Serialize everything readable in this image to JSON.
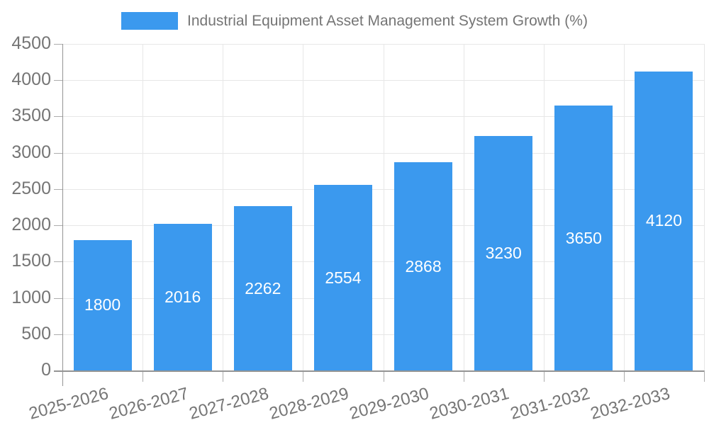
{
  "legend": {
    "label": "Industrial Equipment Asset Management System Growth (%)"
  },
  "chart_data": {
    "type": "bar",
    "title": "Industrial Equipment Asset Management System Growth (%)",
    "categories": [
      "2025-2026",
      "2026-2027",
      "2027-2028",
      "2028-2029",
      "2029-2030",
      "2030-2031",
      "2031-2032",
      "2032-2033"
    ],
    "values": [
      1800,
      2016,
      2262,
      2554,
      2868,
      3230,
      3650,
      4120
    ],
    "xlabel": "",
    "ylabel": "",
    "ylim": [
      0,
      4500
    ],
    "ytick_step": 500,
    "yticks": [
      0,
      500,
      1000,
      1500,
      2000,
      2500,
      3000,
      3500,
      4000,
      4500
    ],
    "grid": true,
    "legend_position": "top-center",
    "x_label_rotation_deg": 15,
    "colors": {
      "bar": "#3B99EE",
      "bar_label": "#FFFFFF",
      "grid": "#E7E7E7",
      "axis": "#949494",
      "tick": "#ADADAD",
      "text": "#757575"
    }
  }
}
